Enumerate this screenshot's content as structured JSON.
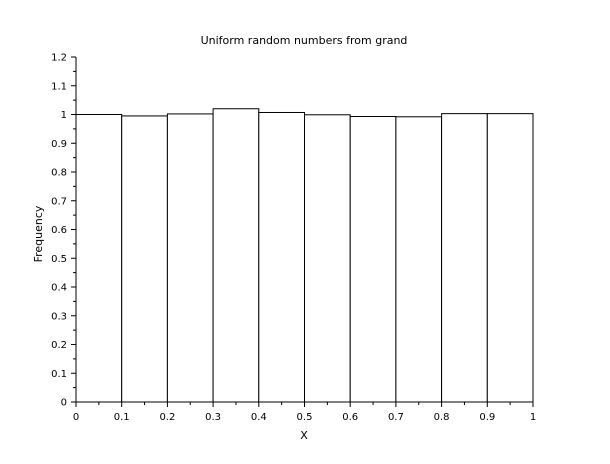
{
  "chart_data": {
    "type": "bar",
    "title": "Uniform random numbers from grand",
    "xlabel": "X",
    "ylabel": "Frequency",
    "xlim": [
      0,
      1
    ],
    "ylim": [
      0,
      1.2
    ],
    "grid": false,
    "legend": "none",
    "bin_edges": [
      0,
      0.1,
      0.2,
      0.3,
      0.4,
      0.5,
      0.6,
      0.7,
      0.8,
      0.9,
      1.0
    ],
    "values": [
      1.0,
      0.995,
      1.002,
      1.02,
      1.007,
      0.999,
      0.993,
      0.992,
      1.003,
      1.003
    ],
    "x_ticks": [
      "0",
      "0.1",
      "0.2",
      "0.3",
      "0.4",
      "0.5",
      "0.6",
      "0.7",
      "0.8",
      "0.9",
      "1"
    ],
    "x_tick_values": [
      0,
      0.1,
      0.2,
      0.3,
      0.4,
      0.5,
      0.6,
      0.7,
      0.8,
      0.9,
      1.0
    ],
    "y_ticks": [
      "0",
      "0.1",
      "0.2",
      "0.3",
      "0.4",
      "0.5",
      "0.6",
      "0.7",
      "0.8",
      "0.9",
      "1",
      "1.1",
      "1.2"
    ],
    "y_tick_values": [
      0,
      0.1,
      0.2,
      0.3,
      0.4,
      0.5,
      0.6,
      0.7,
      0.8,
      0.9,
      1.0,
      1.1,
      1.2
    ],
    "bar_fill": "#ffffff",
    "bar_stroke": "#000000"
  }
}
